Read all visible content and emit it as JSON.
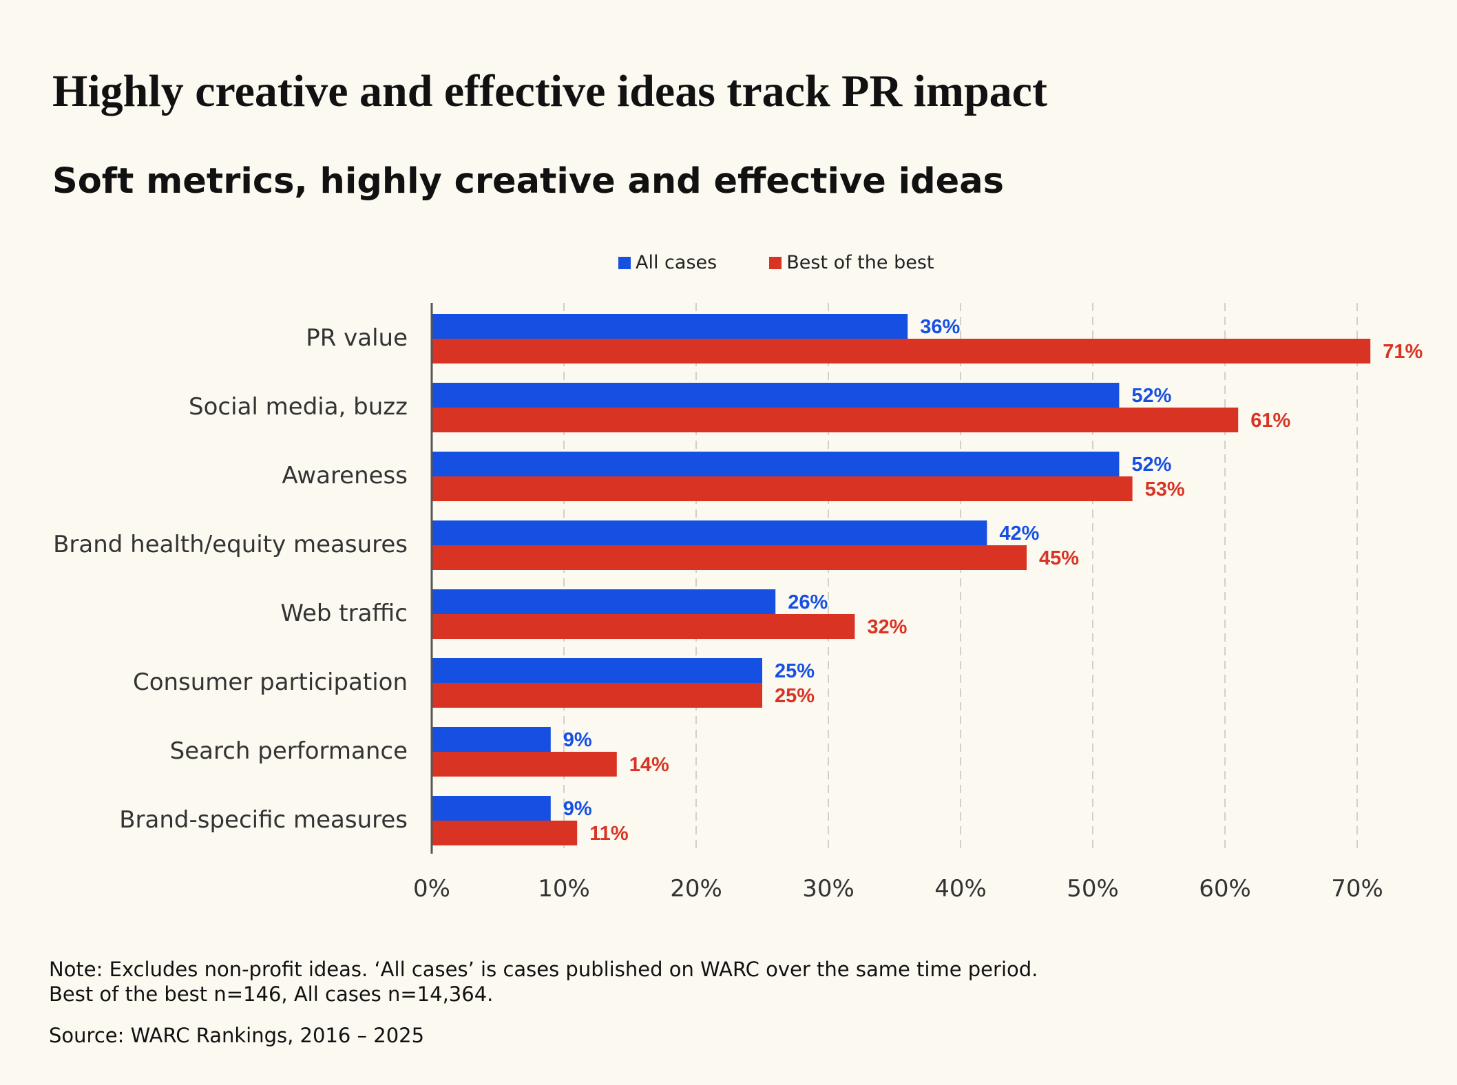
{
  "title": "Highly creative and effective ideas track PR impact",
  "subtitle": "Soft metrics, highly creative and effective ideas",
  "colors": {
    "all_cases": "#1650e3",
    "best_of_best": "#d93323",
    "background": "#fcf9f1"
  },
  "chart_data": {
    "type": "bar",
    "orientation": "horizontal",
    "categories": [
      "PR value",
      "Social media, buzz",
      "Awareness",
      "Brand health/equity measures",
      "Web traffic",
      "Consumer participation",
      "Search performance",
      "Brand-specific measures"
    ],
    "series": [
      {
        "name": "All cases",
        "color": "#1650e3",
        "values": [
          36,
          52,
          52,
          42,
          26,
          25,
          9,
          9
        ]
      },
      {
        "name": "Best of the best",
        "color": "#d93323",
        "values": [
          71,
          61,
          53,
          45,
          32,
          25,
          14,
          11
        ]
      }
    ],
    "xlim": [
      0,
      70
    ],
    "x_ticks": [
      "0%",
      "10%",
      "20%",
      "30%",
      "40%",
      "50%",
      "60%",
      "70%"
    ],
    "value_suffix": "%",
    "grid": "vertical dashed",
    "legend": "top-center"
  },
  "notes": {
    "line1": "Note: Excludes non-profit ideas. ‘All cases’ is cases published on WARC over the same time period.",
    "line2": "Best of the best n=146, All cases n=14,364.",
    "source": "Source: WARC Rankings, 2016 – 2025"
  }
}
